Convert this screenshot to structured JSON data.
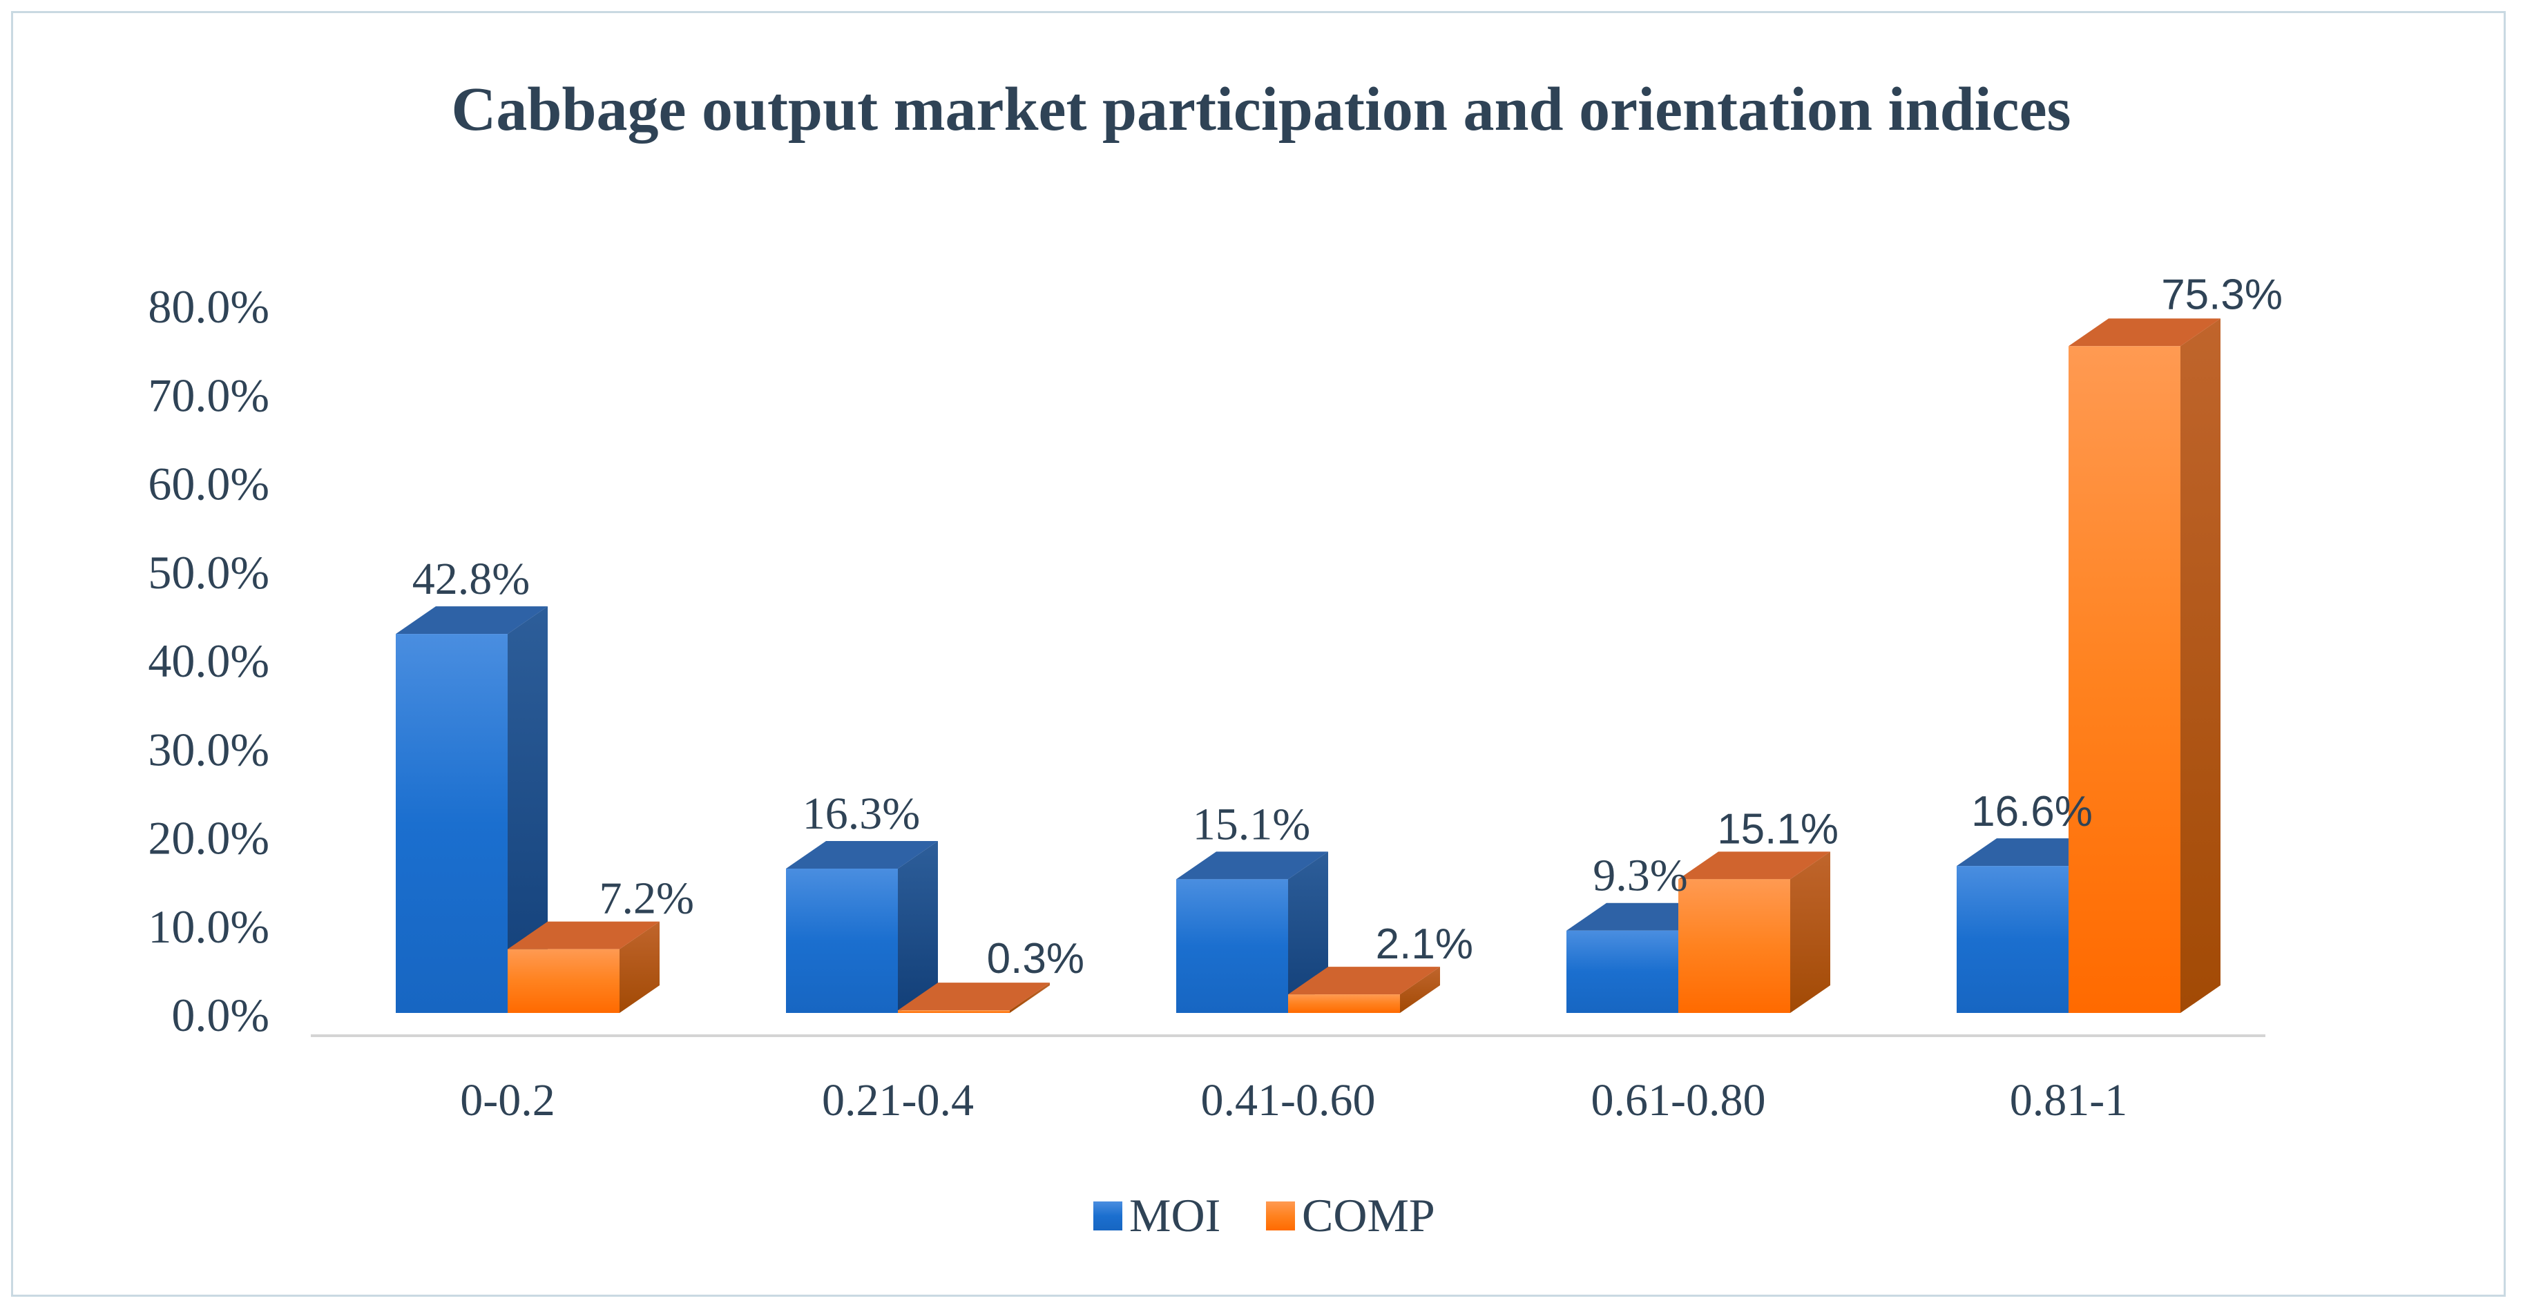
{
  "chart_data": {
    "type": "bar",
    "title": "Cabbage output market participation and orientation indices",
    "categories": [
      "0-0.2",
      "0.21-0.4",
      "0.41-0.60",
      "0.61-0.80",
      "0.81-1"
    ],
    "series": [
      {
        "name": "MOI",
        "values": [
          42.8,
          16.3,
          15.1,
          9.3,
          16.6
        ],
        "labels": [
          "42.8%",
          "16.3%",
          "15.1%",
          "9.3%",
          "16.6%"
        ],
        "color": "#1f6fd0"
      },
      {
        "name": "COMP",
        "values": [
          7.2,
          0.3,
          2.1,
          15.1,
          75.3
        ],
        "labels": [
          "7.2%",
          "0.3%",
          "2.1%",
          "15.1%",
          "75.3%"
        ],
        "color": "#ff7a1a"
      }
    ],
    "y_ticks": [
      "0.0%",
      "10.0%",
      "20.0%",
      "30.0%",
      "40.0%",
      "50.0%",
      "60.0%",
      "70.0%",
      "80.0%"
    ],
    "ylim": [
      0,
      80
    ],
    "xlabel": "",
    "ylabel": "",
    "legend": "bottom",
    "grid": false
  }
}
